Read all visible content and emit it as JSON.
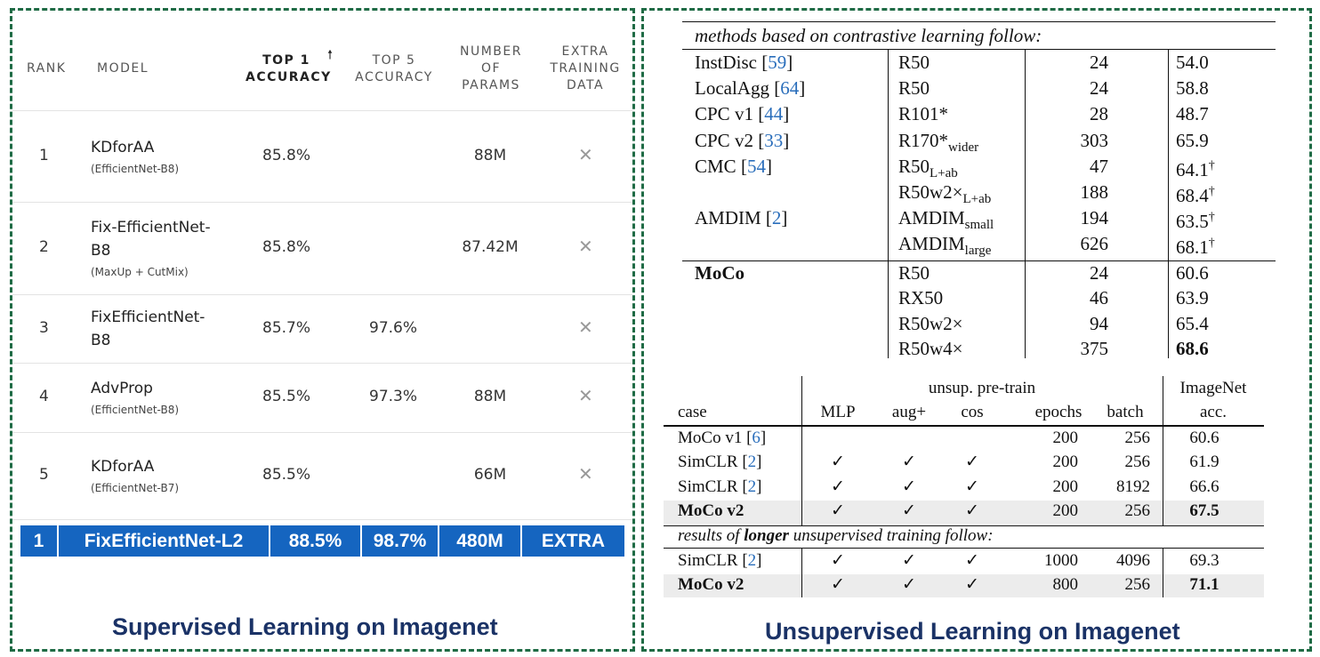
{
  "captions": {
    "left": "Supervised Learning on Imagenet",
    "right": "Unsupervised Learning on Imagenet"
  },
  "leaderboard": {
    "headers": {
      "rank": "RANK",
      "model": "MODEL",
      "top1": [
        "TOP 1",
        "ACCURACY"
      ],
      "top5": [
        "TOP 5",
        "ACCURACY"
      ],
      "params": [
        "NUMBER",
        "OF",
        "PARAMS"
      ],
      "extra": [
        "EXTRA",
        "TRAINING",
        "DATA"
      ],
      "sort_icon": "arrow-up-icon"
    },
    "rows": [
      {
        "rank": "1",
        "name": [
          "KDforAA"
        ],
        "sub": "(EfficientNet-B8)",
        "top1": "85.8%",
        "top5": "",
        "params": "88M",
        "extra": "✕"
      },
      {
        "rank": "2",
        "name": [
          "Fix-EfficientNet-",
          "B8"
        ],
        "sub": "(MaxUp + CutMix)",
        "top1": "85.8%",
        "top5": "",
        "params": "87.42M",
        "extra": "✕"
      },
      {
        "rank": "3",
        "name": [
          "FixEfficientNet-",
          "B8"
        ],
        "sub": "",
        "top1": "85.7%",
        "top5": "97.6%",
        "params": "",
        "extra": "✕"
      },
      {
        "rank": "4",
        "name": [
          "AdvProp"
        ],
        "sub": "(EfficientNet-B8)",
        "top1": "85.5%",
        "top5": "97.3%",
        "params": "88M",
        "extra": "✕"
      },
      {
        "rank": "5",
        "name": [
          "KDforAA"
        ],
        "sub": "(EfficientNet-B7)",
        "top1": "85.5%",
        "top5": "",
        "params": "66M",
        "extra": "✕"
      }
    ],
    "highlight": {
      "rank": "1",
      "model": "FixEfficientNet-L2",
      "top1": "88.5%",
      "top5": "98.7%",
      "params": "480M",
      "extra": "EXTRA",
      "color": "#1565c0"
    }
  },
  "table1": {
    "header": "methods based on contrastive learning follow:",
    "rows": [
      {
        "method": "InstDisc",
        "cite": "59",
        "arch": "R50",
        "arch_sub": "",
        "params": "24",
        "acc": "54.0",
        "dagger": ""
      },
      {
        "method": "LocalAgg",
        "cite": "64",
        "arch": "R50",
        "arch_sub": "",
        "params": "24",
        "acc": "58.8",
        "dagger": ""
      },
      {
        "method": "CPC v1",
        "cite": "44",
        "arch": "R101*",
        "arch_sub": "",
        "params": "28",
        "acc": "48.7",
        "dagger": ""
      },
      {
        "method": "CPC v2",
        "cite": "33",
        "arch": "R170*",
        "arch_sub": "wider",
        "params": "303",
        "acc": "65.9",
        "dagger": ""
      },
      {
        "method": "CMC",
        "cite": "54",
        "arch": "R50",
        "arch_sub": "L+ab",
        "params": "47",
        "acc": "64.1",
        "dagger": "†"
      },
      {
        "method": "",
        "cite": "",
        "arch": "R50w2×",
        "arch_sub": "L+ab",
        "params": "188",
        "acc": "68.4",
        "dagger": "†"
      },
      {
        "method": "AMDIM",
        "cite": "2",
        "arch": "AMDIM",
        "arch_sub": "small",
        "params": "194",
        "acc": "63.5",
        "dagger": "†"
      },
      {
        "method": "",
        "cite": "",
        "arch": "AMDIM",
        "arch_sub": "large",
        "params": "626",
        "acc": "68.1",
        "dagger": "†"
      }
    ],
    "moco": {
      "name": "MoCo",
      "rows": [
        {
          "arch": "R50",
          "params": "24",
          "acc": "60.6"
        },
        {
          "arch": "RX50",
          "params": "46",
          "acc": "63.9"
        },
        {
          "arch": "R50w2×",
          "params": "94",
          "acc": "65.4"
        },
        {
          "arch": "R50w4×",
          "params": "375",
          "acc": "68.6"
        }
      ]
    }
  },
  "table2": {
    "group_header": "unsup. pre-train",
    "imagenet_header": [
      "ImageNet",
      "acc."
    ],
    "columns": [
      "case",
      "MLP",
      "aug+",
      "cos",
      "epochs",
      "batch"
    ],
    "rows": [
      {
        "case": "MoCo v1",
        "cite": "6",
        "mlp": "",
        "aug": "",
        "cos": "",
        "epochs": "200",
        "batch": "256",
        "acc": "60.6",
        "bold": false,
        "shade": false
      },
      {
        "case": "SimCLR",
        "cite": "2",
        "mlp": "✓",
        "aug": "✓",
        "cos": "✓",
        "epochs": "200",
        "batch": "256",
        "acc": "61.9",
        "bold": false,
        "shade": false
      },
      {
        "case": "SimCLR",
        "cite": "2",
        "mlp": "✓",
        "aug": "✓",
        "cos": "✓",
        "epochs": "200",
        "batch": "8192",
        "acc": "66.6",
        "bold": false,
        "shade": false
      },
      {
        "case": "MoCo v2",
        "cite": "",
        "mlp": "✓",
        "aug": "✓",
        "cos": "✓",
        "epochs": "200",
        "batch": "256",
        "acc": "67.5",
        "bold": true,
        "shade": true
      }
    ],
    "section": {
      "pre": "results of ",
      "bold": "longer",
      "post": " unsupervised training follow:"
    },
    "rows2": [
      {
        "case": "SimCLR",
        "cite": "2",
        "mlp": "✓",
        "aug": "✓",
        "cos": "✓",
        "epochs": "1000",
        "batch": "4096",
        "acc": "69.3",
        "bold": false,
        "shade": false
      },
      {
        "case": "MoCo v2",
        "cite": "",
        "mlp": "✓",
        "aug": "✓",
        "cos": "✓",
        "epochs": "800",
        "batch": "256",
        "acc": "71.1",
        "bold": true,
        "shade": true
      }
    ]
  }
}
